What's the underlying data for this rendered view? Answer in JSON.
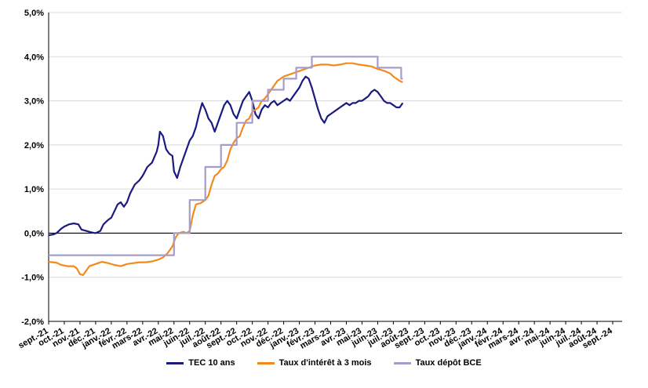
{
  "chart_data": {
    "type": "line",
    "title": "",
    "xlabel": "",
    "ylabel": "",
    "ylim": [
      -2.0,
      5.0
    ],
    "yticks": [
      "5,0%",
      "4,0%",
      "3,0%",
      "2,0%",
      "1,0%",
      "0,0%",
      "-1,0%",
      "-2,0%"
    ],
    "ytick_values": [
      5,
      4,
      3,
      2,
      1,
      0,
      -1,
      -2
    ],
    "x_categories": [
      "sept.-21",
      "oct.-21",
      "nov.-21",
      "déc.-21",
      "janv.-22",
      "févr.-22",
      "mars-22",
      "avr.-22",
      "mai-22",
      "juin-22",
      "juil.-22",
      "août-22",
      "sept.-22",
      "oct.-22",
      "nov.-22",
      "déc.-22",
      "janv.-23",
      "févr.-23",
      "mars-23",
      "avr.-23",
      "mai-23",
      "juin-23",
      "juil.-23",
      "août-23",
      "sept.-23",
      "oct.-23",
      "nov.-23",
      "déc.-23",
      "janv.-24",
      "févr.-24",
      "mars-24",
      "avr.-24",
      "mai-24",
      "juin-24",
      "juil.-24",
      "août-24",
      "sept.-24"
    ],
    "grid": "horizontal",
    "legend_position": "bottom",
    "series": [
      {
        "name": "TEC 10 ans",
        "color": "#1a1a80",
        "points": [
          [
            0,
            -0.05
          ],
          [
            0.3,
            -0.03
          ],
          [
            0.5,
            0.0
          ],
          [
            0.8,
            0.1
          ],
          [
            1.0,
            0.15
          ],
          [
            1.3,
            0.2
          ],
          [
            1.6,
            0.22
          ],
          [
            1.9,
            0.2
          ],
          [
            2.1,
            0.08
          ],
          [
            2.4,
            0.05
          ],
          [
            2.7,
            0.02
          ],
          [
            3.0,
            0.0
          ],
          [
            3.3,
            0.05
          ],
          [
            3.5,
            0.2
          ],
          [
            3.8,
            0.3
          ],
          [
            4.0,
            0.35
          ],
          [
            4.2,
            0.5
          ],
          [
            4.4,
            0.65
          ],
          [
            4.6,
            0.7
          ],
          [
            4.8,
            0.6
          ],
          [
            5.0,
            0.7
          ],
          [
            5.2,
            0.9
          ],
          [
            5.5,
            1.1
          ],
          [
            5.8,
            1.2
          ],
          [
            6.0,
            1.3
          ],
          [
            6.3,
            1.5
          ],
          [
            6.6,
            1.6
          ],
          [
            6.9,
            1.85
          ],
          [
            7.0,
            2.0
          ],
          [
            7.1,
            2.3
          ],
          [
            7.3,
            2.2
          ],
          [
            7.5,
            1.9
          ],
          [
            7.7,
            1.8
          ],
          [
            7.9,
            1.75
          ],
          [
            8.0,
            1.4
          ],
          [
            8.2,
            1.25
          ],
          [
            8.4,
            1.5
          ],
          [
            8.6,
            1.7
          ],
          [
            8.8,
            1.9
          ],
          [
            9.0,
            2.1
          ],
          [
            9.2,
            2.2
          ],
          [
            9.4,
            2.4
          ],
          [
            9.6,
            2.7
          ],
          [
            9.8,
            2.95
          ],
          [
            10.0,
            2.8
          ],
          [
            10.2,
            2.6
          ],
          [
            10.4,
            2.5
          ],
          [
            10.6,
            2.3
          ],
          [
            10.8,
            2.5
          ],
          [
            11.0,
            2.7
          ],
          [
            11.2,
            2.9
          ],
          [
            11.4,
            3.0
          ],
          [
            11.6,
            2.9
          ],
          [
            11.8,
            2.7
          ],
          [
            12.0,
            2.6
          ],
          [
            12.2,
            2.8
          ],
          [
            12.4,
            3.0
          ],
          [
            12.6,
            3.1
          ],
          [
            12.8,
            3.2
          ],
          [
            13.0,
            3.0
          ],
          [
            13.2,
            2.7
          ],
          [
            13.4,
            2.6
          ],
          [
            13.6,
            2.8
          ],
          [
            13.8,
            2.9
          ],
          [
            14.0,
            2.85
          ],
          [
            14.2,
            2.95
          ],
          [
            14.4,
            3.0
          ],
          [
            14.6,
            2.9
          ],
          [
            14.8,
            2.95
          ],
          [
            15.0,
            3.0
          ],
          [
            15.2,
            3.05
          ],
          [
            15.4,
            3.0
          ],
          [
            15.6,
            3.1
          ],
          [
            15.8,
            3.2
          ],
          [
            16.0,
            3.3
          ],
          [
            16.2,
            3.45
          ],
          [
            16.4,
            3.55
          ],
          [
            16.6,
            3.5
          ],
          [
            16.8,
            3.3
          ],
          [
            17.0,
            3.05
          ],
          [
            17.2,
            2.8
          ],
          [
            17.4,
            2.6
          ],
          [
            17.6,
            2.5
          ],
          [
            17.8,
            2.65
          ],
          [
            18.0,
            2.7
          ],
          [
            18.2,
            2.75
          ],
          [
            18.4,
            2.8
          ],
          [
            18.6,
            2.85
          ],
          [
            18.8,
            2.9
          ],
          [
            19.0,
            2.95
          ],
          [
            19.2,
            2.9
          ],
          [
            19.4,
            2.95
          ],
          [
            19.6,
            2.95
          ],
          [
            19.8,
            3.0
          ],
          [
            20.0,
            3.0
          ],
          [
            20.2,
            3.05
          ],
          [
            20.4,
            3.1
          ],
          [
            20.6,
            3.2
          ],
          [
            20.8,
            3.25
          ],
          [
            21.0,
            3.2
          ],
          [
            21.2,
            3.1
          ],
          [
            21.4,
            3.0
          ],
          [
            21.6,
            2.95
          ],
          [
            21.8,
            2.95
          ],
          [
            22.0,
            2.9
          ],
          [
            22.2,
            2.85
          ],
          [
            22.4,
            2.85
          ],
          [
            22.6,
            2.95
          ]
        ]
      },
      {
        "name": "Taux d'intérêt à 3 mois",
        "color": "#f28a1e",
        "points": [
          [
            0,
            -0.65
          ],
          [
            0.5,
            -0.67
          ],
          [
            0.8,
            -0.72
          ],
          [
            1.2,
            -0.75
          ],
          [
            1.6,
            -0.75
          ],
          [
            1.8,
            -0.8
          ],
          [
            2.0,
            -0.93
          ],
          [
            2.2,
            -0.95
          ],
          [
            2.4,
            -0.85
          ],
          [
            2.6,
            -0.75
          ],
          [
            3.0,
            -0.7
          ],
          [
            3.4,
            -0.65
          ],
          [
            3.8,
            -0.68
          ],
          [
            4.2,
            -0.72
          ],
          [
            4.6,
            -0.75
          ],
          [
            5.0,
            -0.7
          ],
          [
            5.4,
            -0.68
          ],
          [
            5.8,
            -0.66
          ],
          [
            6.2,
            -0.66
          ],
          [
            6.6,
            -0.64
          ],
          [
            7.0,
            -0.6
          ],
          [
            7.3,
            -0.55
          ],
          [
            7.6,
            -0.45
          ],
          [
            7.9,
            -0.3
          ],
          [
            8.1,
            -0.1
          ],
          [
            8.3,
            0.0
          ],
          [
            8.6,
            0.03
          ],
          [
            8.8,
            0.0
          ],
          [
            9.0,
            0.05
          ],
          [
            9.2,
            0.4
          ],
          [
            9.4,
            0.65
          ],
          [
            9.7,
            0.68
          ],
          [
            10.0,
            0.75
          ],
          [
            10.2,
            0.85
          ],
          [
            10.4,
            1.1
          ],
          [
            10.6,
            1.3
          ],
          [
            10.8,
            1.35
          ],
          [
            11.0,
            1.45
          ],
          [
            11.2,
            1.5
          ],
          [
            11.4,
            1.65
          ],
          [
            11.6,
            1.9
          ],
          [
            11.8,
            2.05
          ],
          [
            12.0,
            2.15
          ],
          [
            12.2,
            2.2
          ],
          [
            12.4,
            2.4
          ],
          [
            12.6,
            2.55
          ],
          [
            12.8,
            2.6
          ],
          [
            13.0,
            2.75
          ],
          [
            13.2,
            2.8
          ],
          [
            13.4,
            2.85
          ],
          [
            13.6,
            3.0
          ],
          [
            13.8,
            3.05
          ],
          [
            14.0,
            3.15
          ],
          [
            14.2,
            3.25
          ],
          [
            14.4,
            3.35
          ],
          [
            14.6,
            3.45
          ],
          [
            14.8,
            3.5
          ],
          [
            15.0,
            3.55
          ],
          [
            15.4,
            3.6
          ],
          [
            15.8,
            3.65
          ],
          [
            16.2,
            3.7
          ],
          [
            16.6,
            3.75
          ],
          [
            17.0,
            3.8
          ],
          [
            17.4,
            3.82
          ],
          [
            17.8,
            3.82
          ],
          [
            18.2,
            3.8
          ],
          [
            18.6,
            3.82
          ],
          [
            19.0,
            3.85
          ],
          [
            19.4,
            3.85
          ],
          [
            19.8,
            3.82
          ],
          [
            20.2,
            3.8
          ],
          [
            20.6,
            3.78
          ],
          [
            21.0,
            3.72
          ],
          [
            21.4,
            3.68
          ],
          [
            21.8,
            3.62
          ],
          [
            22.0,
            3.55
          ],
          [
            22.2,
            3.5
          ],
          [
            22.4,
            3.45
          ],
          [
            22.6,
            3.42
          ]
        ]
      },
      {
        "name": "Taux dépôt BCE",
        "color": "#a79cc9",
        "points": [
          [
            0,
            -0.5
          ],
          [
            8.0,
            -0.5
          ],
          [
            8.0,
            0.0
          ],
          [
            9.0,
            0.0
          ],
          [
            9.0,
            0.75
          ],
          [
            10.0,
            0.75
          ],
          [
            10.0,
            1.5
          ],
          [
            11.0,
            1.5
          ],
          [
            11.0,
            2.0
          ],
          [
            12.0,
            2.0
          ],
          [
            12.0,
            2.5
          ],
          [
            13.0,
            2.5
          ],
          [
            13.0,
            3.0
          ],
          [
            14.0,
            3.0
          ],
          [
            14.0,
            3.25
          ],
          [
            15.0,
            3.25
          ],
          [
            15.0,
            3.5
          ],
          [
            15.8,
            3.5
          ],
          [
            15.8,
            3.75
          ],
          [
            16.8,
            3.75
          ],
          [
            16.8,
            4.0
          ],
          [
            21.0,
            4.0
          ],
          [
            21.0,
            3.75
          ],
          [
            22.5,
            3.75
          ],
          [
            22.5,
            3.5
          ],
          [
            22.6,
            3.5
          ]
        ]
      }
    ]
  }
}
